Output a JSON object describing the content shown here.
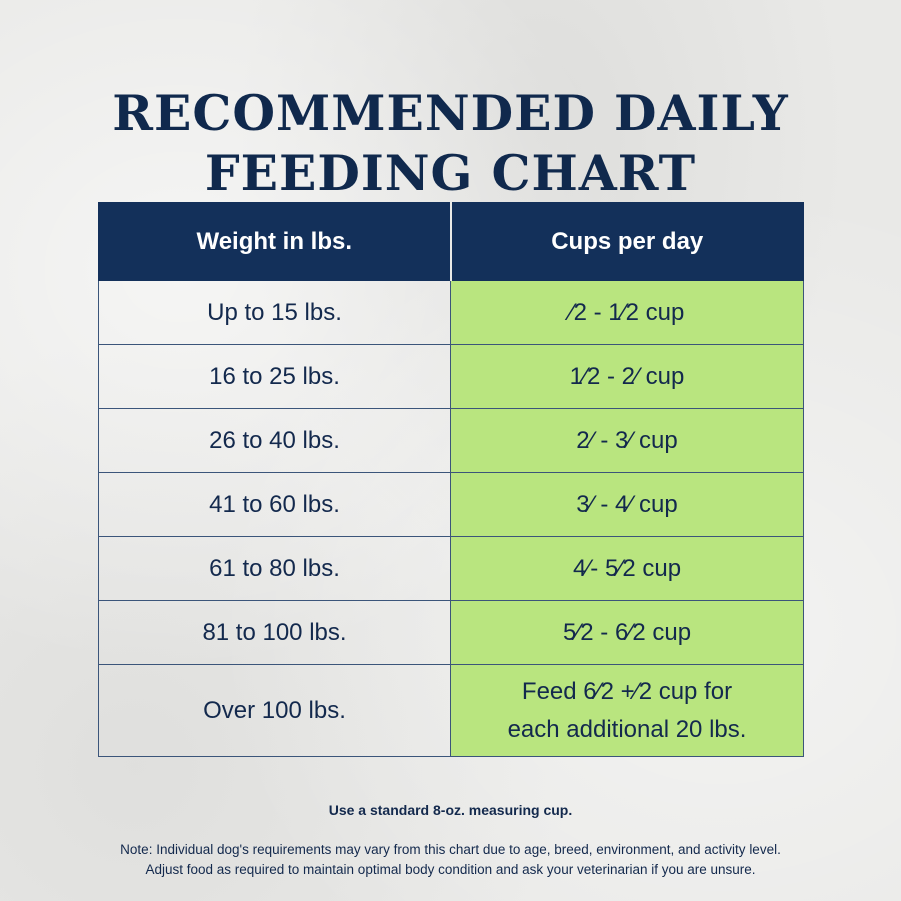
{
  "title": {
    "line1": "RECOMMENDED DAILY",
    "line2": "FEEDING CHART"
  },
  "table": {
    "headers": {
      "weight": "Weight in lbs.",
      "cups": "Cups per day"
    },
    "rows": [
      {
        "weight": "Up to 15 lbs.",
        "cups": "⁄2 - 1⁄2 cup"
      },
      {
        "weight": "16 to 25 lbs.",
        "cups": "1⁄2  - 2⁄ cup"
      },
      {
        "weight": "26 to 40 lbs.",
        "cups": "2⁄ - 3⁄ cup"
      },
      {
        "weight": "41 to 60 lbs.",
        "cups": "3⁄ - 4⁄ cup"
      },
      {
        "weight": "61 to 80 lbs.",
        "cups": "4⁄- 5⁄2 cup"
      },
      {
        "weight": "81 to 100 lbs.",
        "cups": "5⁄2 - 6⁄2 cup"
      },
      {
        "weight": "Over 100 lbs.",
        "cups_line1": "Feed 6⁄2 +⁄2 cup for",
        "cups_line2": "each additional 20 lbs."
      }
    ]
  },
  "notes": {
    "measuring": "Use a standard 8-oz. measuring cup.",
    "line1": "Note: Individual dog's requirements may vary from this chart due to age, breed, environment, and activity level.",
    "line2": "Adjust food as required to maintain optimal body condition and ask your veterinarian if you are unsure."
  },
  "colors": {
    "navy": "#13305a",
    "green": "#b9e57f",
    "background": "#e9e9e7"
  }
}
